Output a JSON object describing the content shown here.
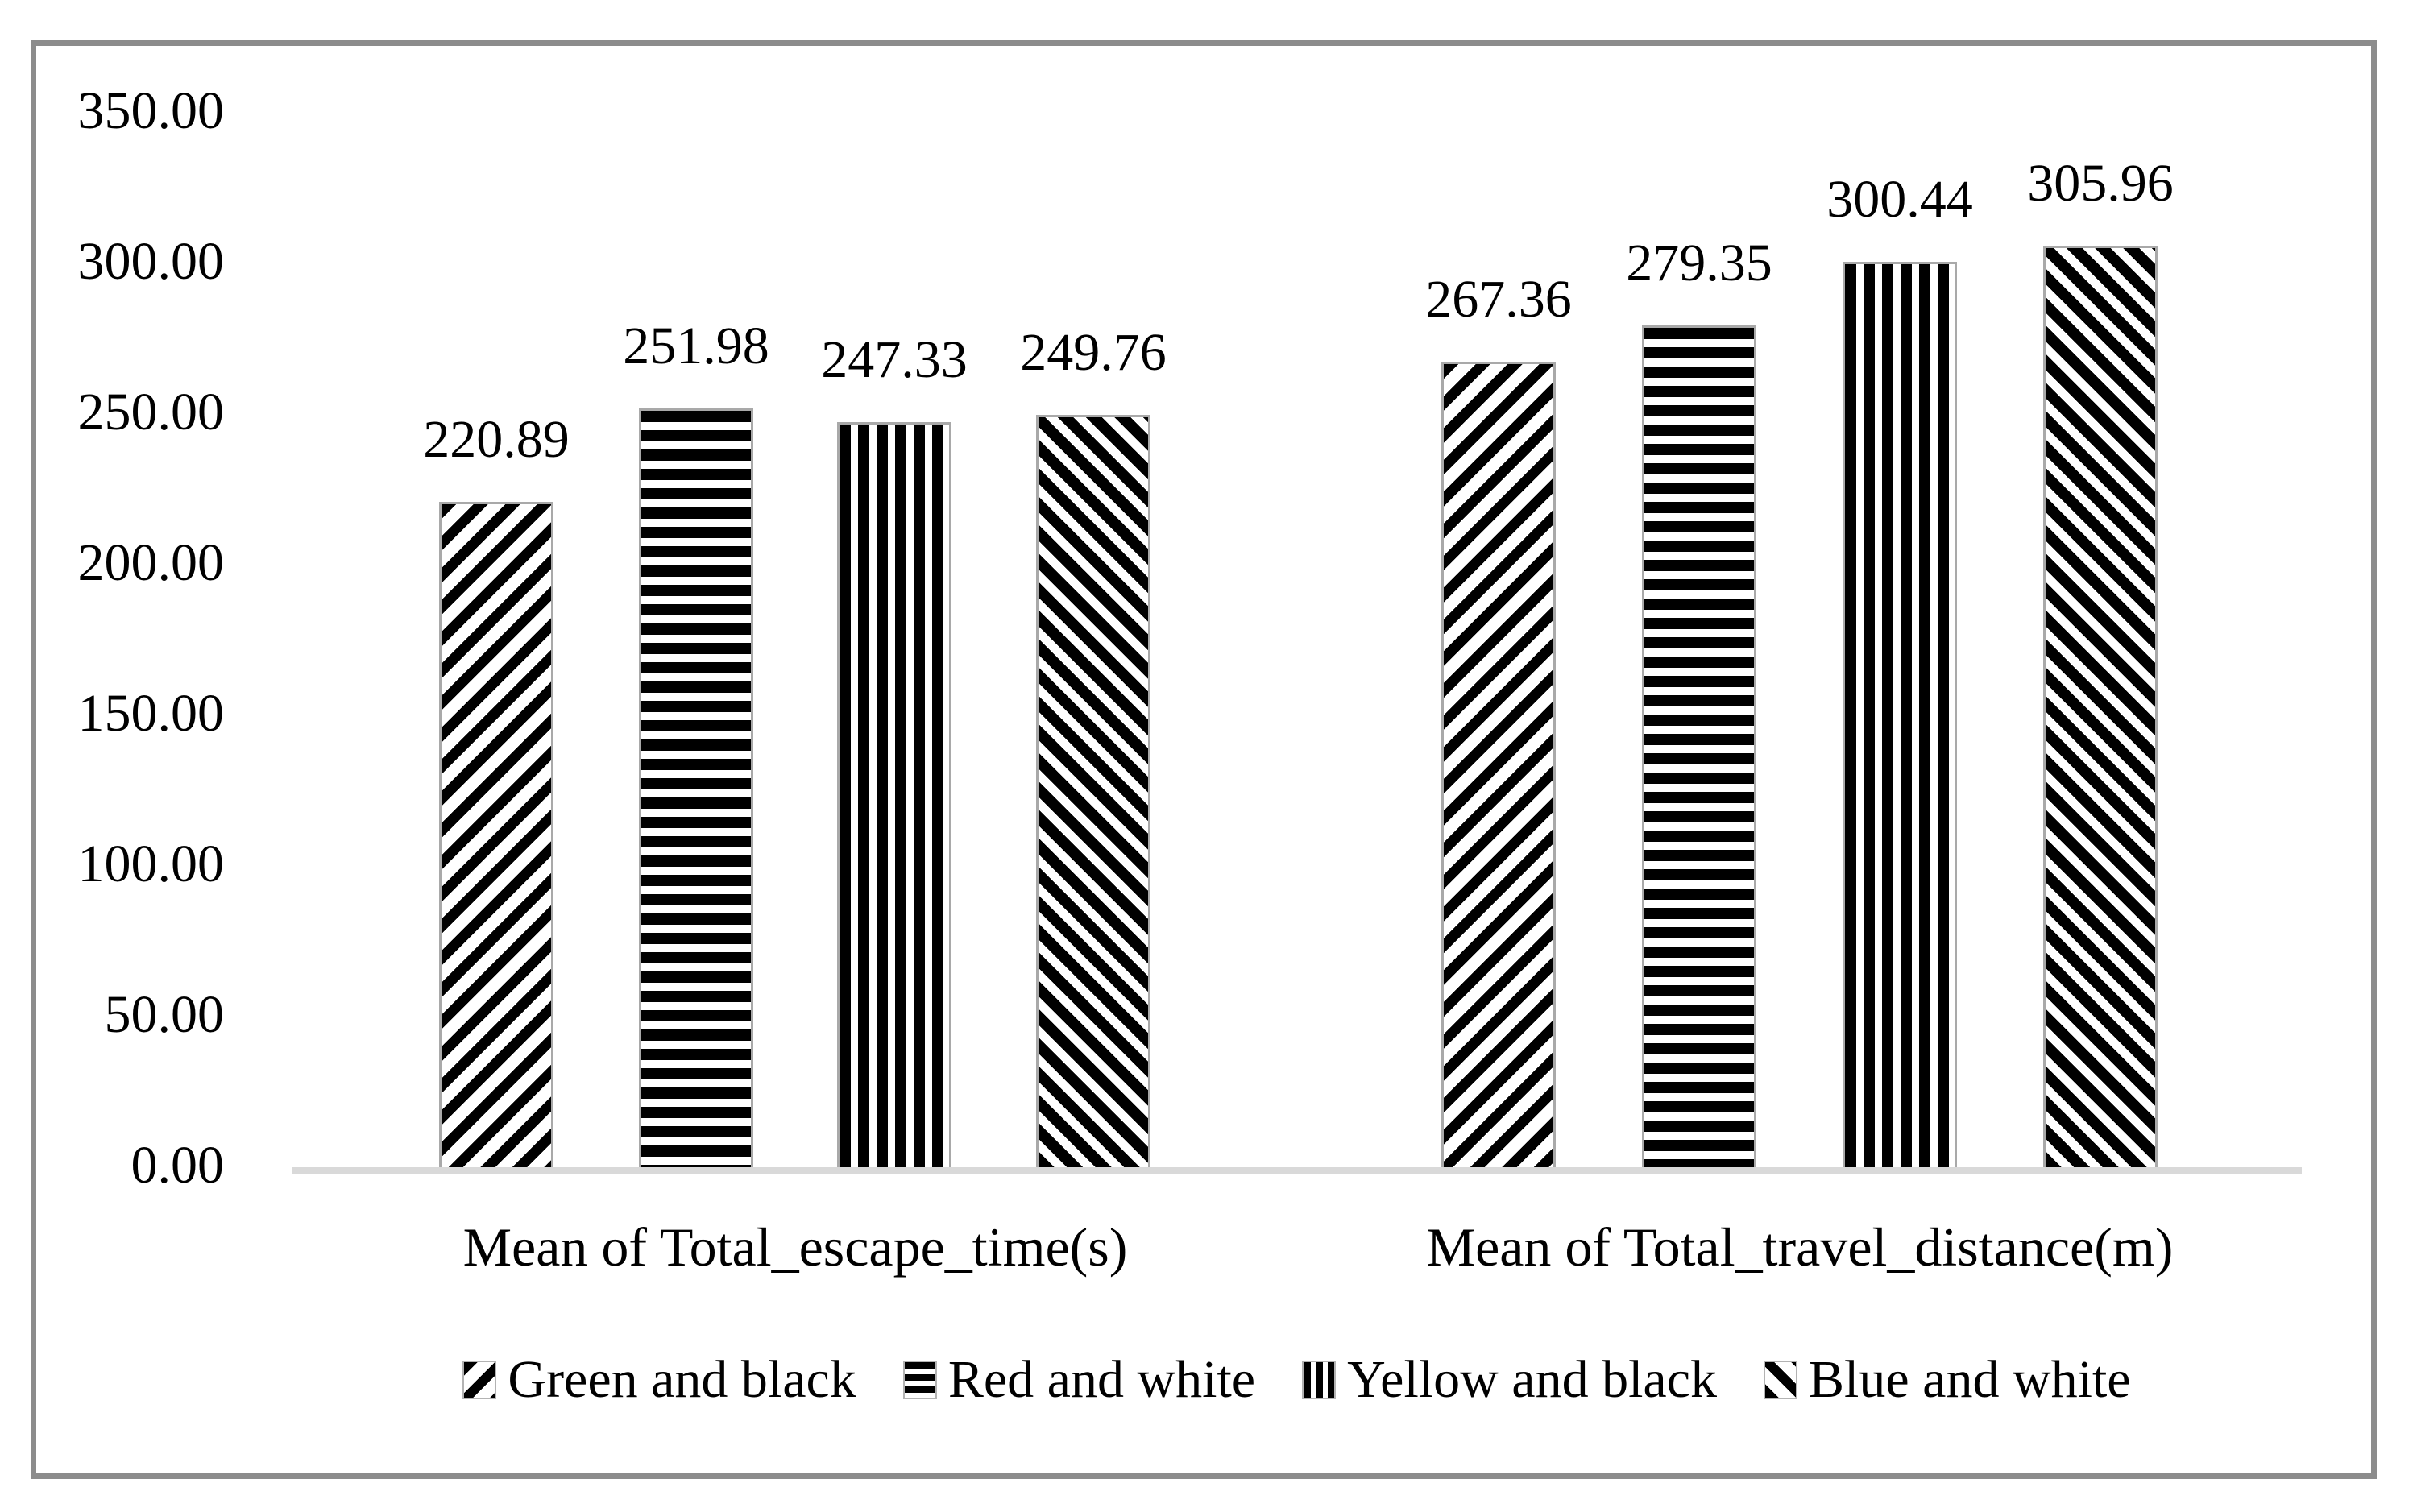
{
  "chart_data": {
    "type": "bar",
    "title": "",
    "categories": [
      "Mean of Total_escape_time(s)",
      "Mean of Total_travel_distance(m)"
    ],
    "series": [
      {
        "name": "Green and black",
        "pattern": "diagonal-up-stripes",
        "values": [
          220.89,
          267.36
        ],
        "labels": [
          "220.89",
          "267.36"
        ]
      },
      {
        "name": "Red and white",
        "pattern": "horizontal-stripes",
        "values": [
          251.98,
          279.35
        ],
        "labels": [
          "251.98",
          "279.35"
        ]
      },
      {
        "name": "Yellow and black",
        "pattern": "vertical-stripes",
        "values": [
          247.33,
          300.44
        ],
        "labels": [
          "247.33",
          "300.44"
        ]
      },
      {
        "name": "Blue and white",
        "pattern": "diagonal-down-stripes",
        "values": [
          249.76,
          305.96
        ],
        "labels": [
          "249.76",
          "305.96"
        ]
      }
    ],
    "y_axis": {
      "min": 0,
      "max": 350,
      "step": 50,
      "tick_labels": [
        "0.00",
        "50.00",
        "100.00",
        "150.00",
        "200.00",
        "250.00",
        "300.00",
        "350.00"
      ]
    },
    "legend_position": "bottom",
    "grid": false,
    "colors": {
      "text": "#000000",
      "bar_fill": "#000000",
      "bar_background": "#ffffff",
      "bar_outline": "#a9a9a9",
      "axis_line": "#d9d9d9",
      "frame_border": "#8c8c8c"
    }
  }
}
